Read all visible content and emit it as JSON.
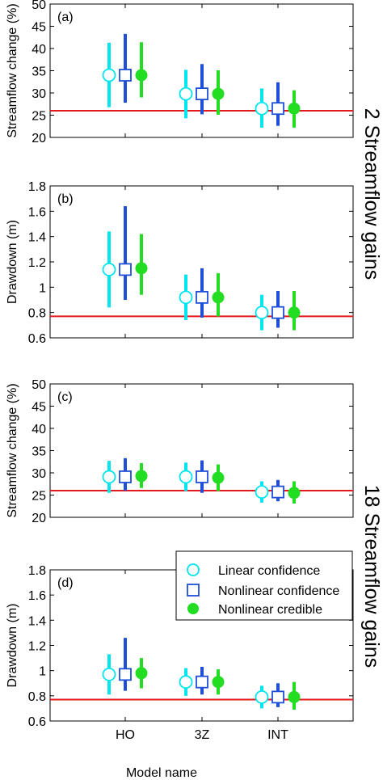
{
  "figure": {
    "group_labels": [
      "2 Streamflow gains",
      "18 Streamflow gains"
    ],
    "xlabel": "Model name"
  },
  "legend": {
    "entries": [
      {
        "label": "Linear confidence",
        "color": "#00e5ee",
        "marker": "open-circle"
      },
      {
        "label": "Nonlinear confidence",
        "color": "#1f4fd8",
        "marker": "open-square"
      },
      {
        "label": "Nonlinear credible",
        "color": "#22dd22",
        "marker": "filled-circle"
      }
    ],
    "placement": "top-right of panel (d)"
  },
  "colors": {
    "linear": "#00e5ee",
    "nonlinear": "#1f4fd8",
    "credible": "#22dd22",
    "reference": "#e31a1c"
  },
  "chart_data": [
    {
      "type": "scatter",
      "panel": "(a)",
      "ylabel": "Streamflow change (%)",
      "xlabel": "",
      "categories": [
        "HO",
        "3Z",
        "INT"
      ],
      "ylim": [
        20,
        50
      ],
      "yticks": [
        "20",
        "25",
        "30",
        "35",
        "40",
        "45",
        "50"
      ],
      "reference_line": 26,
      "series": [
        {
          "name": "Linear confidence",
          "values": [
            34,
            29.8,
            26.5
          ],
          "lower": [
            26.8,
            24.3,
            22.2
          ],
          "upper": [
            41.3,
            35.2,
            31
          ]
        },
        {
          "name": "Nonlinear confidence",
          "values": [
            34,
            29.8,
            26.5
          ],
          "lower": [
            27.8,
            25.2,
            22.6
          ],
          "upper": [
            43.3,
            36.5,
            32.4
          ]
        },
        {
          "name": "Nonlinear credible",
          "values": [
            34,
            29.8,
            26.5
          ],
          "lower": [
            29,
            25.1,
            22.2
          ],
          "upper": [
            41.4,
            35.1,
            30.6
          ]
        }
      ]
    },
    {
      "type": "scatter",
      "panel": "(b)",
      "ylabel": "Drawdown (m)",
      "xlabel": "",
      "categories": [
        "HO",
        "3Z",
        "INT"
      ],
      "ylim": [
        0.6,
        1.8
      ],
      "yticks": [
        "0.6",
        "0.8",
        "1",
        "1.2",
        "1.4",
        "1.6",
        "1.8"
      ],
      "reference_line": 0.77,
      "series": [
        {
          "name": "Linear confidence",
          "values": [
            1.14,
            0.92,
            0.8
          ],
          "lower": [
            0.84,
            0.74,
            0.66
          ],
          "upper": [
            1.44,
            1.1,
            0.94
          ]
        },
        {
          "name": "Nonlinear confidence",
          "values": [
            1.14,
            0.92,
            0.8
          ],
          "lower": [
            0.9,
            0.76,
            0.68
          ],
          "upper": [
            1.64,
            1.15,
            0.97
          ]
        },
        {
          "name": "Nonlinear credible",
          "values": [
            1.15,
            0.92,
            0.8
          ],
          "lower": [
            0.94,
            0.77,
            0.66
          ],
          "upper": [
            1.42,
            1.11,
            0.97
          ]
        }
      ]
    },
    {
      "type": "scatter",
      "panel": "(c)",
      "ylabel": "Streamflow change (%)",
      "xlabel": "",
      "categories": [
        "HO",
        "3Z",
        "INT"
      ],
      "ylim": [
        20,
        50
      ],
      "yticks": [
        "20",
        "25",
        "30",
        "35",
        "40",
        "45",
        "50"
      ],
      "reference_line": 26,
      "series": [
        {
          "name": "Linear confidence",
          "values": [
            29.1,
            29.1,
            25.7
          ],
          "lower": [
            25.5,
            25.9,
            23.3
          ],
          "upper": [
            32.7,
            32.3,
            28.1
          ]
        },
        {
          "name": "Nonlinear confidence",
          "values": [
            29.1,
            29.1,
            25.7
          ],
          "lower": [
            26,
            25.5,
            23.6
          ],
          "upper": [
            33.3,
            32.8,
            28.4
          ]
        },
        {
          "name": "Nonlinear credible",
          "values": [
            29.3,
            28.9,
            25.5
          ],
          "lower": [
            26.6,
            25.9,
            23.1
          ],
          "upper": [
            32.2,
            31.9,
            28.1
          ]
        }
      ]
    },
    {
      "type": "scatter",
      "panel": "(d)",
      "ylabel": "Drawdown (m)",
      "xlabel": "Model name",
      "categories": [
        "HO",
        "3Z",
        "INT"
      ],
      "ylim": [
        0.6,
        1.8
      ],
      "yticks": [
        "0.6",
        "0.8",
        "1",
        "1.2",
        "1.4",
        "1.6",
        "1.8"
      ],
      "reference_line": 0.77,
      "series": [
        {
          "name": "Linear confidence",
          "values": [
            0.97,
            0.91,
            0.79
          ],
          "lower": [
            0.81,
            0.8,
            0.7
          ],
          "upper": [
            1.13,
            1.02,
            0.88
          ]
        },
        {
          "name": "Nonlinear confidence",
          "values": [
            0.97,
            0.91,
            0.79
          ],
          "lower": [
            0.84,
            0.81,
            0.71
          ],
          "upper": [
            1.26,
            1.03,
            0.9
          ]
        },
        {
          "name": "Nonlinear credible",
          "values": [
            0.98,
            0.91,
            0.79
          ],
          "lower": [
            0.86,
            0.81,
            0.69
          ],
          "upper": [
            1.1,
            1.01,
            0.91
          ]
        }
      ]
    }
  ]
}
